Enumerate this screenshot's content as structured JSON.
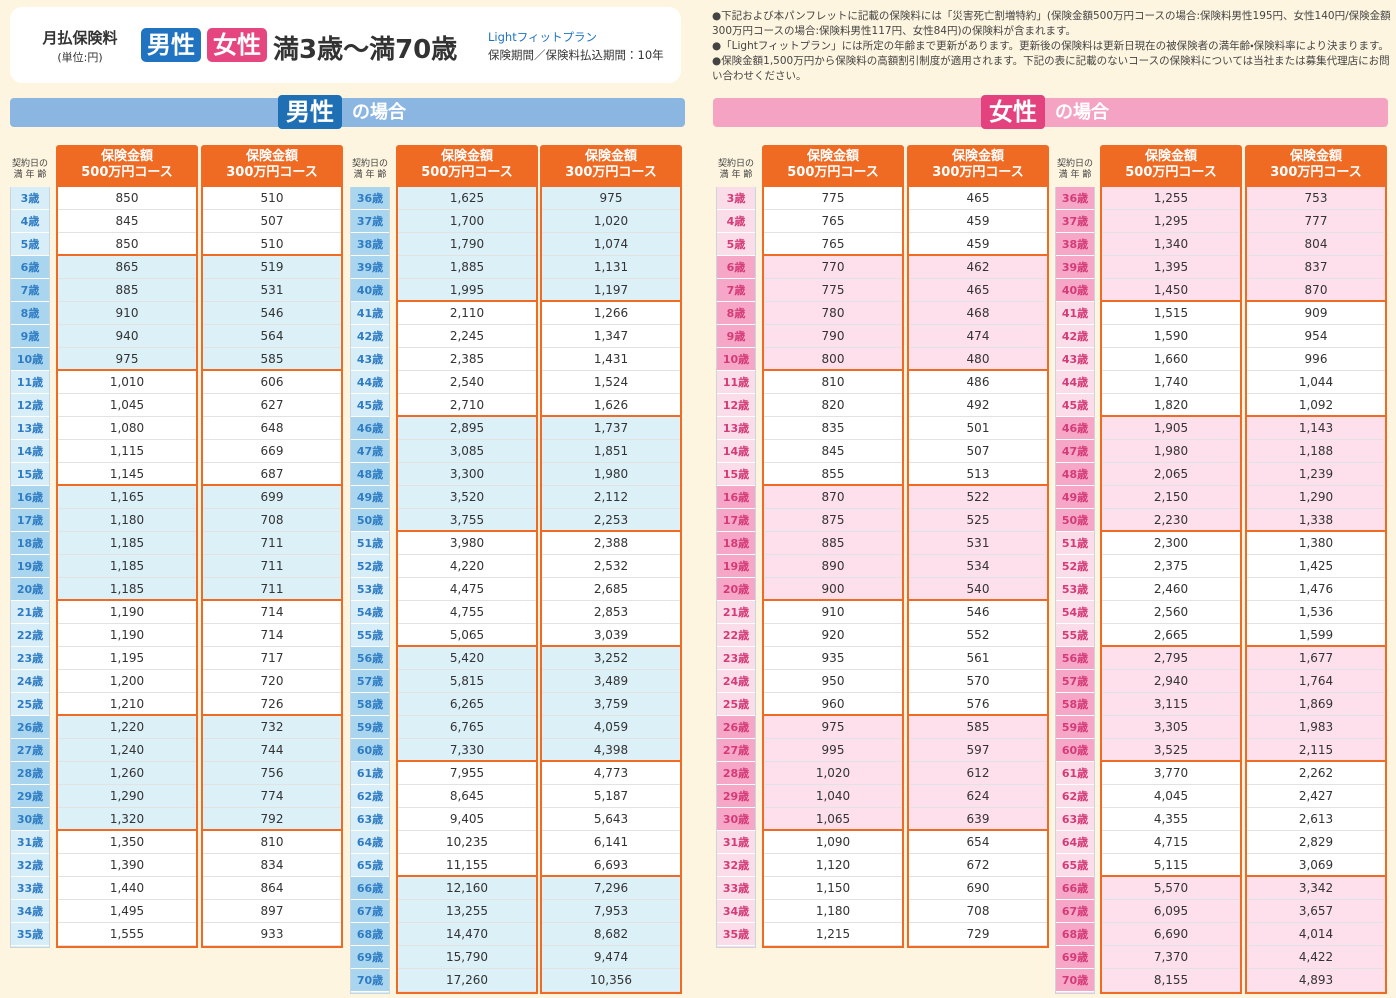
{
  "header": {
    "title": "月払保険料",
    "unit": "(単位:円)",
    "male": "男性",
    "female": "女性",
    "age_range": "満3歳～満70歳",
    "plan": "Lightフィットプラン",
    "period": "保険期間／保険料払込期間：10年"
  },
  "notes": [
    "●下記および本パンフレットに記載の保険料には「災害死亡割増特約」(保険金額500万円コースの場合:保険料男性195円、女性140円/保険金額300万円コースの場合:保険料男性117円、女性84円)の保険料が含まれます。",
    "●「Lightフィットプラン」には所定の年齢まで更新があります。更新後の保険料は更新日現在の被保険者の満年齢・保険料率により決まります。",
    "●保険金額1,500万円から保険料の高額割引制度が適用されます。下記の表に記載のないコースの保険料については当社または募集代理店にお問い合わせください。"
  ],
  "sections": [
    {
      "label": "男性",
      "suffix": "の場合",
      "column_headers": {
        "age": [
          "契約日の",
          "満 年 齢"
        ],
        "c500": [
          "保険金額",
          "500万円コース"
        ],
        "c300": [
          "保険金額",
          "300万円コース"
        ]
      },
      "tables": [
        {
          "rows": [
            [
              "3歳",
              "850",
              "510"
            ],
            [
              "4歳",
              "845",
              "507"
            ],
            [
              "5歳",
              "850",
              "510"
            ],
            [
              "6歳",
              "865",
              "519"
            ],
            [
              "7歳",
              "885",
              "531"
            ],
            [
              "8歳",
              "910",
              "546"
            ],
            [
              "9歳",
              "940",
              "564"
            ],
            [
              "10歳",
              "975",
              "585"
            ],
            [
              "11歳",
              "1,010",
              "606"
            ],
            [
              "12歳",
              "1,045",
              "627"
            ],
            [
              "13歳",
              "1,080",
              "648"
            ],
            [
              "14歳",
              "1,115",
              "669"
            ],
            [
              "15歳",
              "1,145",
              "687"
            ],
            [
              "16歳",
              "1,165",
              "699"
            ],
            [
              "17歳",
              "1,180",
              "708"
            ],
            [
              "18歳",
              "1,185",
              "711"
            ],
            [
              "19歳",
              "1,185",
              "711"
            ],
            [
              "20歳",
              "1,185",
              "711"
            ],
            [
              "21歳",
              "1,190",
              "714"
            ],
            [
              "22歳",
              "1,190",
              "714"
            ],
            [
              "23歳",
              "1,195",
              "717"
            ],
            [
              "24歳",
              "1,200",
              "720"
            ],
            [
              "25歳",
              "1,210",
              "726"
            ],
            [
              "26歳",
              "1,220",
              "732"
            ],
            [
              "27歳",
              "1,240",
              "744"
            ],
            [
              "28歳",
              "1,260",
              "756"
            ],
            [
              "29歳",
              "1,290",
              "774"
            ],
            [
              "30歳",
              "1,320",
              "792"
            ],
            [
              "31歳",
              "1,350",
              "810"
            ],
            [
              "32歳",
              "1,390",
              "834"
            ],
            [
              "33歳",
              "1,440",
              "864"
            ],
            [
              "34歳",
              "1,495",
              "897"
            ],
            [
              "35歳",
              "1,555",
              "933"
            ]
          ]
        },
        {
          "rows": [
            [
              "36歳",
              "1,625",
              "975"
            ],
            [
              "37歳",
              "1,700",
              "1,020"
            ],
            [
              "38歳",
              "1,790",
              "1,074"
            ],
            [
              "39歳",
              "1,885",
              "1,131"
            ],
            [
              "40歳",
              "1,995",
              "1,197"
            ],
            [
              "41歳",
              "2,110",
              "1,266"
            ],
            [
              "42歳",
              "2,245",
              "1,347"
            ],
            [
              "43歳",
              "2,385",
              "1,431"
            ],
            [
              "44歳",
              "2,540",
              "1,524"
            ],
            [
              "45歳",
              "2,710",
              "1,626"
            ],
            [
              "46歳",
              "2,895",
              "1,737"
            ],
            [
              "47歳",
              "3,085",
              "1,851"
            ],
            [
              "48歳",
              "3,300",
              "1,980"
            ],
            [
              "49歳",
              "3,520",
              "2,112"
            ],
            [
              "50歳",
              "3,755",
              "2,253"
            ],
            [
              "51歳",
              "3,980",
              "2,388"
            ],
            [
              "52歳",
              "4,220",
              "2,532"
            ],
            [
              "53歳",
              "4,475",
              "2,685"
            ],
            [
              "54歳",
              "4,755",
              "2,853"
            ],
            [
              "55歳",
              "5,065",
              "3,039"
            ],
            [
              "56歳",
              "5,420",
              "3,252"
            ],
            [
              "57歳",
              "5,815",
              "3,489"
            ],
            [
              "58歳",
              "6,265",
              "3,759"
            ],
            [
              "59歳",
              "6,765",
              "4,059"
            ],
            [
              "60歳",
              "7,330",
              "4,398"
            ],
            [
              "61歳",
              "7,955",
              "4,773"
            ],
            [
              "62歳",
              "8,645",
              "5,187"
            ],
            [
              "63歳",
              "9,405",
              "5,643"
            ],
            [
              "64歳",
              "10,235",
              "6,141"
            ],
            [
              "65歳",
              "11,155",
              "6,693"
            ],
            [
              "66歳",
              "12,160",
              "7,296"
            ],
            [
              "67歳",
              "13,255",
              "7,953"
            ],
            [
              "68歳",
              "14,470",
              "8,682"
            ],
            [
              "69歳",
              "15,790",
              "9,474"
            ],
            [
              "70歳",
              "17,260",
              "10,356"
            ]
          ]
        }
      ]
    },
    {
      "label": "女性",
      "suffix": "の場合",
      "column_headers": {
        "age": [
          "契約日の",
          "満 年 齢"
        ],
        "c500": [
          "保険金額",
          "500万円コース"
        ],
        "c300": [
          "保険金額",
          "300万円コース"
        ]
      },
      "tables": [
        {
          "rows": [
            [
              "3歳",
              "775",
              "465"
            ],
            [
              "4歳",
              "765",
              "459"
            ],
            [
              "5歳",
              "765",
              "459"
            ],
            [
              "6歳",
              "770",
              "462"
            ],
            [
              "7歳",
              "775",
              "465"
            ],
            [
              "8歳",
              "780",
              "468"
            ],
            [
              "9歳",
              "790",
              "474"
            ],
            [
              "10歳",
              "800",
              "480"
            ],
            [
              "11歳",
              "810",
              "486"
            ],
            [
              "12歳",
              "820",
              "492"
            ],
            [
              "13歳",
              "835",
              "501"
            ],
            [
              "14歳",
              "845",
              "507"
            ],
            [
              "15歳",
              "855",
              "513"
            ],
            [
              "16歳",
              "870",
              "522"
            ],
            [
              "17歳",
              "875",
              "525"
            ],
            [
              "18歳",
              "885",
              "531"
            ],
            [
              "19歳",
              "890",
              "534"
            ],
            [
              "20歳",
              "900",
              "540"
            ],
            [
              "21歳",
              "910",
              "546"
            ],
            [
              "22歳",
              "920",
              "552"
            ],
            [
              "23歳",
              "935",
              "561"
            ],
            [
              "24歳",
              "950",
              "570"
            ],
            [
              "25歳",
              "960",
              "576"
            ],
            [
              "26歳",
              "975",
              "585"
            ],
            [
              "27歳",
              "995",
              "597"
            ],
            [
              "28歳",
              "1,020",
              "612"
            ],
            [
              "29歳",
              "1,040",
              "624"
            ],
            [
              "30歳",
              "1,065",
              "639"
            ],
            [
              "31歳",
              "1,090",
              "654"
            ],
            [
              "32歳",
              "1,120",
              "672"
            ],
            [
              "33歳",
              "1,150",
              "690"
            ],
            [
              "34歳",
              "1,180",
              "708"
            ],
            [
              "35歳",
              "1,215",
              "729"
            ]
          ]
        },
        {
          "rows": [
            [
              "36歳",
              "1,255",
              "753"
            ],
            [
              "37歳",
              "1,295",
              "777"
            ],
            [
              "38歳",
              "1,340",
              "804"
            ],
            [
              "39歳",
              "1,395",
              "837"
            ],
            [
              "40歳",
              "1,450",
              "870"
            ],
            [
              "41歳",
              "1,515",
              "909"
            ],
            [
              "42歳",
              "1,590",
              "954"
            ],
            [
              "43歳",
              "1,660",
              "996"
            ],
            [
              "44歳",
              "1,740",
              "1,044"
            ],
            [
              "45歳",
              "1,820",
              "1,092"
            ],
            [
              "46歳",
              "1,905",
              "1,143"
            ],
            [
              "47歳",
              "1,980",
              "1,188"
            ],
            [
              "48歳",
              "2,065",
              "1,239"
            ],
            [
              "49歳",
              "2,150",
              "1,290"
            ],
            [
              "50歳",
              "2,230",
              "1,338"
            ],
            [
              "51歳",
              "2,300",
              "1,380"
            ],
            [
              "52歳",
              "2,375",
              "1,425"
            ],
            [
              "53歳",
              "2,460",
              "1,476"
            ],
            [
              "54歳",
              "2,560",
              "1,536"
            ],
            [
              "55歳",
              "2,665",
              "1,599"
            ],
            [
              "56歳",
              "2,795",
              "1,677"
            ],
            [
              "57歳",
              "2,940",
              "1,764"
            ],
            [
              "58歳",
              "3,115",
              "1,869"
            ],
            [
              "59歳",
              "3,305",
              "1,983"
            ],
            [
              "60歳",
              "3,525",
              "2,115"
            ],
            [
              "61歳",
              "3,770",
              "2,262"
            ],
            [
              "62歳",
              "4,045",
              "2,427"
            ],
            [
              "63歳",
              "4,355",
              "2,613"
            ],
            [
              "64歳",
              "4,715",
              "2,829"
            ],
            [
              "65歳",
              "5,115",
              "3,069"
            ],
            [
              "66歳",
              "5,570",
              "3,342"
            ],
            [
              "67歳",
              "6,095",
              "3,657"
            ],
            [
              "68歳",
              "6,690",
              "4,014"
            ],
            [
              "69歳",
              "7,370",
              "4,422"
            ],
            [
              "70歳",
              "8,155",
              "4,893"
            ]
          ]
        }
      ]
    }
  ]
}
